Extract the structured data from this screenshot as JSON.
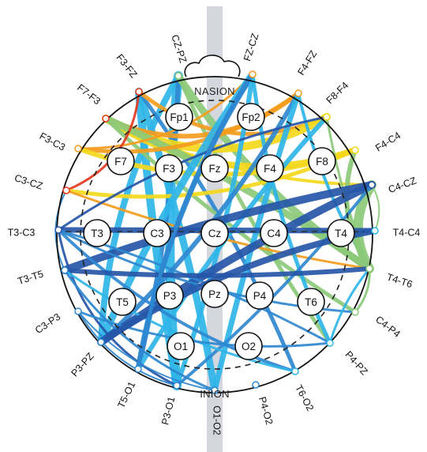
{
  "landmarks": {
    "nasion": "NASION",
    "inion": "INION"
  },
  "electrodes": [
    "Fp1",
    "Fp2",
    "F7",
    "F3",
    "Fz",
    "F4",
    "F8",
    "T3",
    "C3",
    "Cz",
    "C4",
    "T4",
    "T5",
    "P3",
    "Pz",
    "P4",
    "T6",
    "O1",
    "O2"
  ],
  "bipolar_pairs": [
    "CZ-PZ",
    "FZ-CZ",
    "F3-FZ",
    "F4-FZ",
    "F7-F3",
    "F8-F4",
    "F3-C3",
    "F4-C4",
    "C3-CZ",
    "C4-CZ",
    "T3-C3",
    "T4-C4",
    "T3-T5",
    "T4-T6",
    "C3-P3",
    "C4-P4",
    "P3-PZ",
    "P4-PZ",
    "T5-O1",
    "T6-O2",
    "P3-O1",
    "P4-O2",
    "O1-O2"
  ],
  "colors": {
    "green": "#8cc97a",
    "yellow": "#f4d81c",
    "orange": "#f39c1e",
    "red": "#e3381f",
    "light_blue": "#2fb5e8",
    "mid_blue": "#2f88d0",
    "dark_blue": "#2656a8",
    "midline_band": "#d4d8de"
  }
}
